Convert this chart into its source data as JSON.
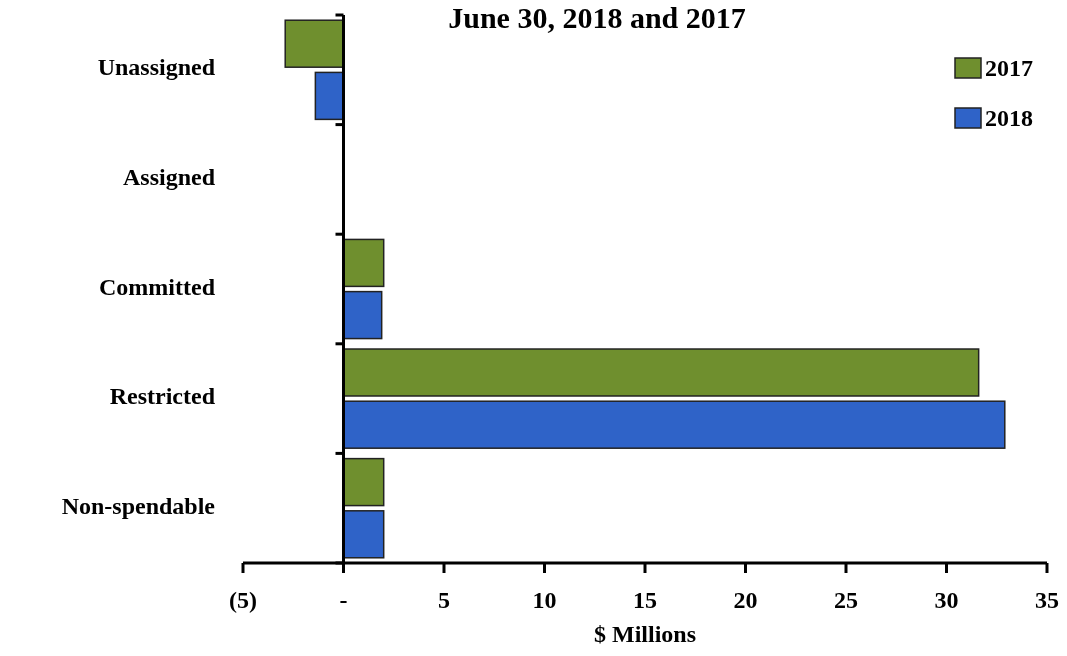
{
  "chart_data": {
    "type": "bar",
    "orientation": "horizontal",
    "title": "June 30, 2018 and 2017",
    "xlabel": "$ Millions",
    "categories": [
      "Unassigned",
      "Assigned",
      "Committed",
      "Restricted",
      "Non-spendable"
    ],
    "series": [
      {
        "name": "2017",
        "color": "#6f8f2e",
        "values": [
          -2.9,
          0,
          2.0,
          31.6,
          2.0
        ]
      },
      {
        "name": "2018",
        "color": "#2f63c8",
        "values": [
          -1.4,
          0,
          1.9,
          32.9,
          2.0
        ]
      }
    ],
    "xlim": [
      -5,
      35
    ],
    "xticks": [
      {
        "value": -5,
        "label": "(5)"
      },
      {
        "value": 0,
        "label": "-"
      },
      5,
      10,
      15,
      20,
      25,
      30,
      35
    ],
    "legend": "top right"
  }
}
